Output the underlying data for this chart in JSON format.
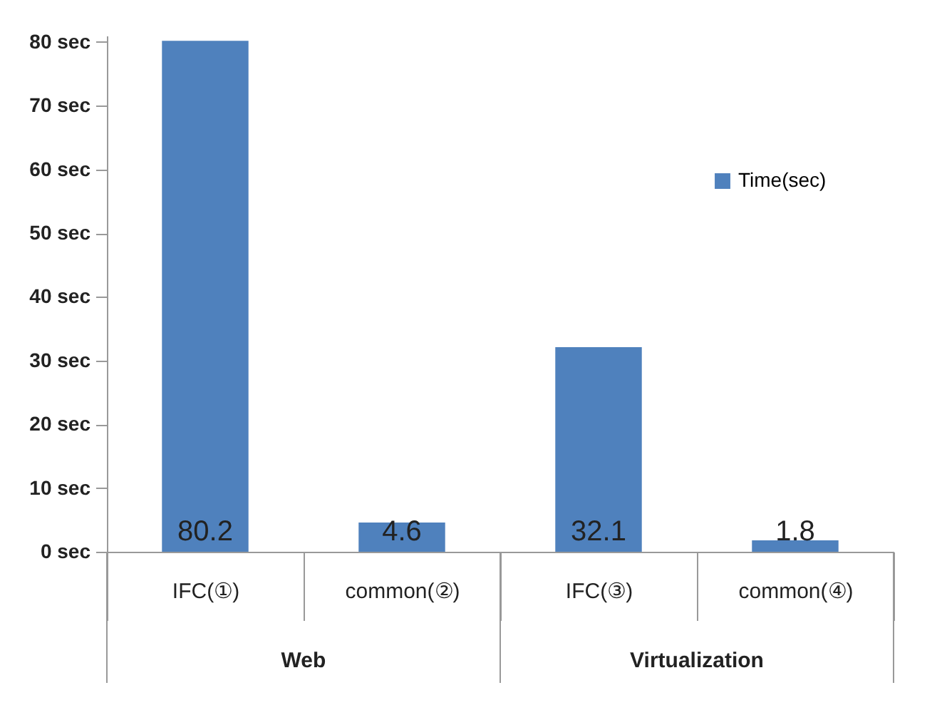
{
  "chart_data": {
    "type": "bar",
    "categories": [
      "IFC(①)",
      "common(②)",
      "IFC(③)",
      "common(④)"
    ],
    "series": [
      {
        "name": "Time(sec)",
        "color": "#4f81bd",
        "values": [
          80.2,
          4.6,
          32.1,
          1.8
        ]
      }
    ],
    "ylim": [
      0,
      81
    ],
    "yticks": [
      {
        "value": 0,
        "label": "0 sec"
      },
      {
        "value": 10,
        "label": "10 sec"
      },
      {
        "value": 20,
        "label": "20 sec"
      },
      {
        "value": 30,
        "label": "30 sec"
      },
      {
        "value": 40,
        "label": "40 sec"
      },
      {
        "value": 50,
        "label": "50 sec"
      },
      {
        "value": 60,
        "label": "60 sec"
      },
      {
        "value": 70,
        "label": "70 sec"
      },
      {
        "value": 80,
        "label": "80 sec"
      }
    ],
    "annotations": [
      "Web",
      "Virtualization"
    ],
    "data_labels": true,
    "grid": false,
    "legend": "right"
  }
}
